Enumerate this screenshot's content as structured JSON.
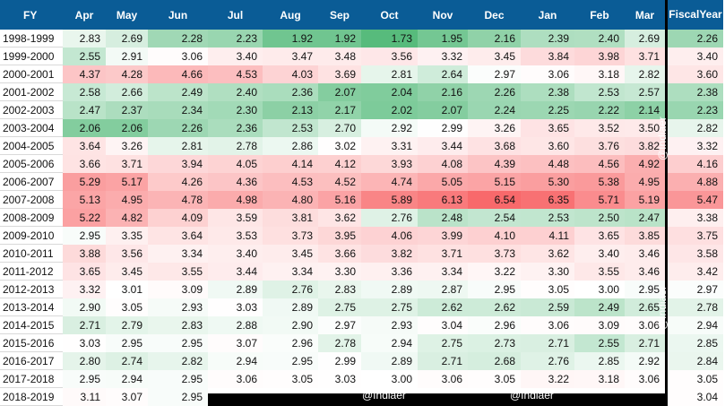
{
  "chart_data": {
    "type": "heatmap",
    "row_header": "FY",
    "columns": [
      "Apr",
      "May",
      "Jun",
      "Jul",
      "Aug",
      "Sep",
      "Oct",
      "Nov",
      "Dec",
      "Jan",
      "Feb",
      "Mar"
    ],
    "total_header": [
      "Fiscal",
      "Year"
    ],
    "rows": [
      {
        "fy": "1998-1999",
        "values": [
          2.83,
          2.69,
          2.28,
          2.23,
          1.92,
          1.92,
          1.73,
          1.95,
          2.16,
          2.39,
          2.4,
          2.69
        ],
        "fiscal_year": 2.26
      },
      {
        "fy": "1999-2000",
        "values": [
          2.55,
          2.91,
          3.06,
          3.4,
          3.47,
          3.48,
          3.56,
          3.32,
          3.45,
          3.84,
          3.98,
          3.71
        ],
        "fiscal_year": 3.4
      },
      {
        "fy": "2000-2001",
        "values": [
          4.37,
          4.28,
          4.66,
          4.53,
          4.03,
          3.69,
          2.81,
          2.64,
          2.97,
          3.06,
          3.18,
          2.82
        ],
        "fiscal_year": 3.6
      },
      {
        "fy": "2001-2002",
        "values": [
          2.58,
          2.66,
          2.49,
          2.4,
          2.36,
          2.07,
          2.04,
          2.16,
          2.26,
          2.38,
          2.53,
          2.57
        ],
        "fiscal_year": 2.38
      },
      {
        "fy": "2002-2003",
        "values": [
          2.47,
          2.37,
          2.34,
          2.3,
          2.13,
          2.17,
          2.02,
          2.07,
          2.24,
          2.25,
          2.22,
          2.14
        ],
        "fiscal_year": 2.23
      },
      {
        "fy": "2003-2004",
        "values": [
          2.06,
          2.06,
          2.26,
          2.36,
          2.53,
          2.7,
          2.92,
          2.99,
          3.26,
          3.65,
          3.52,
          3.5
        ],
        "fiscal_year": 2.82
      },
      {
        "fy": "2004-2005",
        "values": [
          3.64,
          3.26,
          2.81,
          2.78,
          2.86,
          3.02,
          3.31,
          3.44,
          3.68,
          3.6,
          3.76,
          3.82
        ],
        "fiscal_year": 3.32
      },
      {
        "fy": "2005-2006",
        "values": [
          3.66,
          3.71,
          3.94,
          4.05,
          4.14,
          4.12,
          3.93,
          4.08,
          4.39,
          4.48,
          4.56,
          4.92
        ],
        "fiscal_year": 4.16
      },
      {
        "fy": "2006-2007",
        "values": [
          5.29,
          5.17,
          4.26,
          4.36,
          4.53,
          4.52,
          4.74,
          5.05,
          5.15,
          5.3,
          5.38,
          4.95
        ],
        "fiscal_year": 4.88
      },
      {
        "fy": "2007-2008",
        "values": [
          5.13,
          4.95,
          4.78,
          4.98,
          4.8,
          5.16,
          5.89,
          6.13,
          6.54,
          6.35,
          5.71,
          5.19
        ],
        "fiscal_year": 5.47
      },
      {
        "fy": "2008-2009",
        "values": [
          5.22,
          4.82,
          4.09,
          3.59,
          3.81,
          3.62,
          2.76,
          2.48,
          2.54,
          2.53,
          2.5,
          2.47
        ],
        "fiscal_year": 3.38
      },
      {
        "fy": "2009-2010",
        "values": [
          2.95,
          3.35,
          3.64,
          3.53,
          3.73,
          3.95,
          4.06,
          3.99,
          4.1,
          4.11,
          3.65,
          3.85
        ],
        "fiscal_year": 3.75
      },
      {
        "fy": "2010-2011",
        "values": [
          3.88,
          3.56,
          3.34,
          3.4,
          3.45,
          3.66,
          3.82,
          3.71,
          3.73,
          3.62,
          3.4,
          3.46
        ],
        "fiscal_year": 3.58
      },
      {
        "fy": "2011-2012",
        "values": [
          3.65,
          3.45,
          3.55,
          3.44,
          3.34,
          3.3,
          3.36,
          3.34,
          3.22,
          3.3,
          3.55,
          3.46
        ],
        "fiscal_year": 3.42
      },
      {
        "fy": "2012-2013",
        "values": [
          3.32,
          3.01,
          3.09,
          2.89,
          2.76,
          2.83,
          2.89,
          2.87,
          2.95,
          3.05,
          3.0,
          2.95
        ],
        "fiscal_year": 2.97
      },
      {
        "fy": "2013-2014",
        "values": [
          2.9,
          3.05,
          2.93,
          3.03,
          2.89,
          2.75,
          2.75,
          2.62,
          2.62,
          2.59,
          2.49,
          2.65
        ],
        "fiscal_year": 2.78
      },
      {
        "fy": "2014-2015",
        "values": [
          2.71,
          2.79,
          2.83,
          2.88,
          2.9,
          2.97,
          2.93,
          3.04,
          2.96,
          3.06,
          3.09,
          3.06
        ],
        "fiscal_year": 2.94
      },
      {
        "fy": "2015-2016",
        "values": [
          3.03,
          2.95,
          2.95,
          3.07,
          2.96,
          2.78,
          2.94,
          2.75,
          2.73,
          2.71,
          2.55,
          2.71
        ],
        "fiscal_year": 2.85
      },
      {
        "fy": "2016-2017",
        "values": [
          2.8,
          2.74,
          2.82,
          2.94,
          2.95,
          2.99,
          2.89,
          2.71,
          2.68,
          2.76,
          2.85,
          2.92
        ],
        "fiscal_year": 2.84
      },
      {
        "fy": "2017-2018",
        "values": [
          2.95,
          2.94,
          2.95,
          3.06,
          3.05,
          3.03,
          3.0,
          3.06,
          3.05,
          3.22,
          3.18,
          3.06
        ],
        "fiscal_year": 3.05
      },
      {
        "fy": "2018-2019",
        "values": [
          3.11,
          3.07,
          2.95,
          null,
          null,
          null,
          null,
          null,
          null,
          null,
          null,
          null
        ],
        "fiscal_year": 3.04
      }
    ],
    "color_scale": {
      "low": "#57bb7c",
      "mid": "#ffffff",
      "high": "#f8696b"
    },
    "value_range": [
      1.73,
      6.54
    ]
  },
  "watermarks": [
    "@Indiaer",
    "@Indiaer",
    "@Indiaer",
    "@Indiaer"
  ]
}
